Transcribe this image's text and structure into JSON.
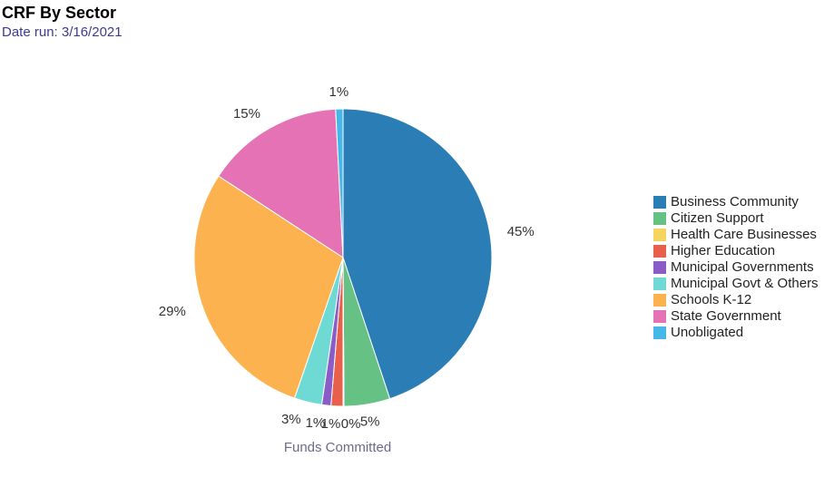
{
  "header": {
    "title": "CRF By Sector",
    "subtitle": "Date run: 3/16/2021"
  },
  "chart_data": {
    "type": "pie",
    "xlabel": "Funds Committed",
    "legend_position": "right",
    "slices": [
      {
        "name": "Business Community",
        "value": 45,
        "label": "45%",
        "color": "#2a7db5"
      },
      {
        "name": "Citizen Support",
        "value": 5,
        "label": "5%",
        "color": "#66c184"
      },
      {
        "name": "Health Care Businesses",
        "value": 0.1,
        "label": "0%",
        "color": "#f5d460"
      },
      {
        "name": "Higher Education",
        "value": 1.3,
        "label": "1%",
        "color": "#e8604c"
      },
      {
        "name": "Municipal Governments",
        "value": 1,
        "label": "1%",
        "color": "#8a5cc8"
      },
      {
        "name": "Municipal Govt & Others",
        "value": 3,
        "label": "3%",
        "color": "#6fd9d4"
      },
      {
        "name": "Schools K-12",
        "value": 29,
        "label": "29%",
        "color": "#fcb34f"
      },
      {
        "name": "State Government",
        "value": 15,
        "label": "15%",
        "color": "#e472b4"
      },
      {
        "name": "Unobligated",
        "value": 0.8,
        "label": "1%",
        "color": "#45b7e8"
      }
    ]
  }
}
